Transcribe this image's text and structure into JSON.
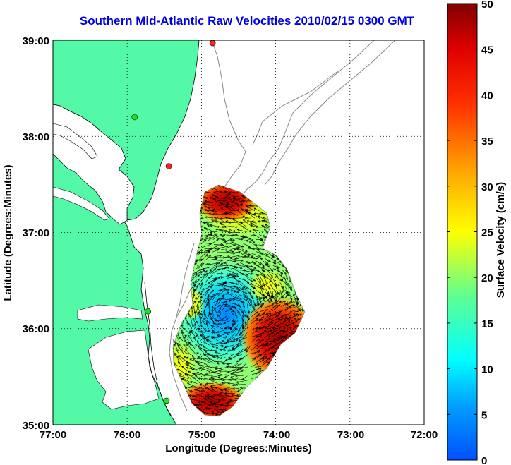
{
  "title": "Southern Mid-Atlantic Raw Velocities 2010/02/15 0300 GMT",
  "x_axis": {
    "label": "Longitude (Degrees:Minutes)",
    "ticks": [
      "77:00",
      "76:00",
      "75:00",
      "74:00",
      "73:00",
      "72:00"
    ]
  },
  "y_axis": {
    "label": "Latitude (Degrees:Minutes)",
    "ticks": [
      "39:00",
      "38:00",
      "37:00",
      "36:00",
      "35:00"
    ]
  },
  "colorbar": {
    "label": "Surface Velocity (cm/s)",
    "min": 0,
    "max": 50,
    "ticks": [
      "0",
      "5",
      "10",
      "15",
      "20",
      "25",
      "30",
      "35",
      "40",
      "45",
      "50"
    ],
    "colors": [
      "#0050ff",
      "#00a0ff",
      "#00ffff",
      "#60ff90",
      "#ffff00",
      "#ffa000",
      "#ff3000",
      "#e00000",
      "#800000"
    ]
  },
  "map": {
    "bounds": {
      "lon_west": -77,
      "lon_east": -72,
      "lat_south": 35,
      "lat_north": 39
    },
    "land_color": "#54f9a8",
    "water_color": "#ffffff",
    "grid": "dotted",
    "radar_sites": [
      {
        "lon": -74.85,
        "lat": 38.97,
        "color": "#ff2020"
      },
      {
        "lon": -75.9,
        "lat": 38.2,
        "color": "#20e020"
      },
      {
        "lon": -75.44,
        "lat": 37.69,
        "color": "#ff2020"
      },
      {
        "lon": -75.72,
        "lat": 36.18,
        "color": "#20e020"
      },
      {
        "lon": -75.47,
        "lat": 35.25,
        "color": "#20e020"
      }
    ]
  }
}
